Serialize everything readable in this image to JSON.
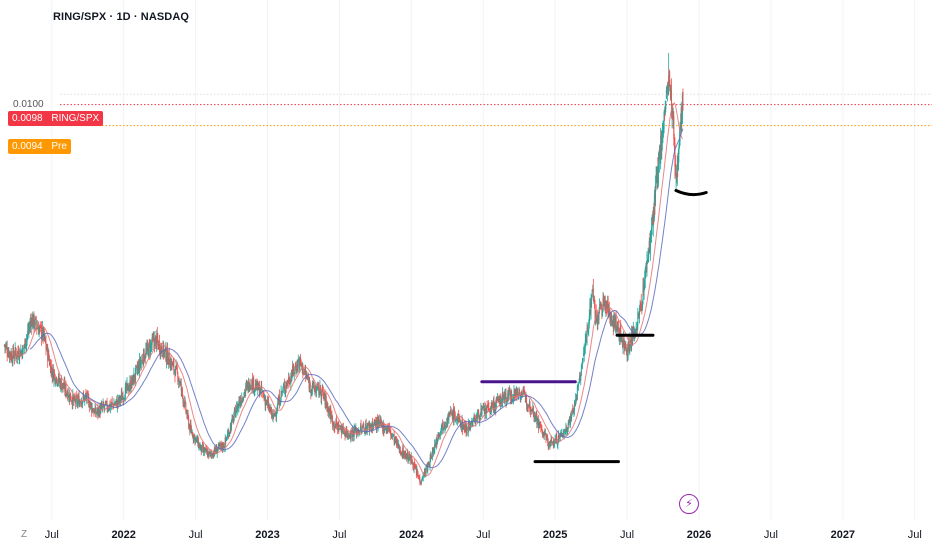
{
  "header": {
    "symbol_title": "RING/SPX · 1D · NASDAQ"
  },
  "price_scale": {
    "top_label": "0.0100"
  },
  "badges": {
    "ring": {
      "value": "0.0098",
      "label": "RING/SPX",
      "color": "#f23645"
    },
    "pre": {
      "value": "0.0094",
      "label": "Pre",
      "color": "#ff9800"
    }
  },
  "footer": {
    "tz_label": "Z"
  },
  "icons": {
    "event_marker": "lightning-bolt-icon"
  },
  "chart_data": {
    "type": "candlestick",
    "title": "RING/SPX · 1D · NASDAQ",
    "x_ticks": [
      {
        "t": 2021.5,
        "label": "Jul",
        "bold": false
      },
      {
        "t": 2022.0,
        "label": "2022",
        "bold": true
      },
      {
        "t": 2022.5,
        "label": "Jul",
        "bold": false
      },
      {
        "t": 2023.0,
        "label": "2023",
        "bold": true
      },
      {
        "t": 2023.5,
        "label": "Jul",
        "bold": false
      },
      {
        "t": 2024.0,
        "label": "2024",
        "bold": true
      },
      {
        "t": 2024.5,
        "label": "Jul",
        "bold": false
      },
      {
        "t": 2025.0,
        "label": "2025",
        "bold": true
      },
      {
        "t": 2025.5,
        "label": "Jul",
        "bold": false
      },
      {
        "t": 2026.0,
        "label": "2026",
        "bold": true
      },
      {
        "t": 2026.5,
        "label": "Jul",
        "bold": false
      },
      {
        "t": 2027.0,
        "label": "2027",
        "bold": true
      },
      {
        "t": 2027.5,
        "label": "Jul",
        "bold": false
      }
    ],
    "xlim": [
      2021.14,
      2027.62
    ],
    "ylim": [
      0.00195,
      0.01142
    ],
    "price_path": [
      [
        2021.17,
        0.0052
      ],
      [
        2021.22,
        0.005
      ],
      [
        2021.3,
        0.0051
      ],
      [
        2021.36,
        0.0057
      ],
      [
        2021.44,
        0.0054
      ],
      [
        2021.5,
        0.0047
      ],
      [
        2021.58,
        0.0044
      ],
      [
        2021.66,
        0.0041
      ],
      [
        2021.74,
        0.0042
      ],
      [
        2021.8,
        0.0039
      ],
      [
        2021.86,
        0.004
      ],
      [
        2021.96,
        0.0041
      ],
      [
        2022.06,
        0.0045
      ],
      [
        2022.14,
        0.005
      ],
      [
        2022.22,
        0.0053
      ],
      [
        2022.3,
        0.005
      ],
      [
        2022.38,
        0.0046
      ],
      [
        2022.46,
        0.0036
      ],
      [
        2022.54,
        0.0032
      ],
      [
        2022.6,
        0.0031
      ],
      [
        2022.7,
        0.0033
      ],
      [
        2022.8,
        0.0041
      ],
      [
        2022.88,
        0.0045
      ],
      [
        2022.96,
        0.0043
      ],
      [
        2023.04,
        0.0038
      ],
      [
        2023.1,
        0.0043
      ],
      [
        2023.16,
        0.0046
      ],
      [
        2023.22,
        0.0049
      ],
      [
        2023.3,
        0.0044
      ],
      [
        2023.38,
        0.0043
      ],
      [
        2023.46,
        0.0037
      ],
      [
        2023.56,
        0.0035
      ],
      [
        2023.66,
        0.0036
      ],
      [
        2023.76,
        0.0037
      ],
      [
        2023.84,
        0.0036
      ],
      [
        2023.92,
        0.0032
      ],
      [
        2024.0,
        0.003
      ],
      [
        2024.06,
        0.0026
      ],
      [
        2024.12,
        0.0029
      ],
      [
        2024.2,
        0.0036
      ],
      [
        2024.28,
        0.0039
      ],
      [
        2024.38,
        0.0036
      ],
      [
        2024.48,
        0.0039
      ],
      [
        2024.56,
        0.004
      ],
      [
        2024.64,
        0.0042
      ],
      [
        2024.76,
        0.0043
      ],
      [
        2024.84,
        0.004
      ],
      [
        2024.9,
        0.0036
      ],
      [
        2024.96,
        0.0033
      ],
      [
        2025.02,
        0.0034
      ],
      [
        2025.08,
        0.0036
      ],
      [
        2025.14,
        0.0041
      ],
      [
        2025.18,
        0.0047
      ],
      [
        2025.22,
        0.0054
      ],
      [
        2025.26,
        0.0063
      ],
      [
        2025.28,
        0.0057
      ],
      [
        2025.34,
        0.006
      ],
      [
        2025.42,
        0.0056
      ],
      [
        2025.5,
        0.0051
      ],
      [
        2025.56,
        0.0055
      ],
      [
        2025.6,
        0.006
      ],
      [
        2025.64,
        0.0068
      ],
      [
        2025.68,
        0.0076
      ],
      [
        2025.72,
        0.0087
      ],
      [
        2025.76,
        0.0096
      ],
      [
        2025.79,
        0.0103
      ],
      [
        2025.82,
        0.0094
      ],
      [
        2025.84,
        0.0082
      ],
      [
        2025.87,
        0.0096
      ],
      [
        2025.89,
        0.0098
      ]
    ],
    "moving_averages": [
      {
        "name": "",
        "color": "#e57373",
        "window": 4
      },
      {
        "name": "",
        "color": "#5c6bc0",
        "window": 9
      }
    ],
    "annotations": [
      {
        "type": "hline",
        "color": "#4a148c",
        "x0": 2024.49,
        "x1": 2025.14,
        "y": 0.0045
      },
      {
        "type": "hline",
        "color": "#000000",
        "x0": 2024.86,
        "x1": 2025.44,
        "y": 0.00297
      },
      {
        "type": "hline",
        "color": "#000000",
        "x0": 2025.43,
        "x1": 2025.68,
        "y": 0.00539
      },
      {
        "type": "curve",
        "color": "#000000",
        "x0": 2025.84,
        "x1": 2026.05,
        "y": 0.00812
      }
    ],
    "price_lines": [
      {
        "y": 0.0098,
        "color": "#f23645"
      },
      {
        "y": 0.0094,
        "color": "#ff9800"
      },
      {
        "y": 0.01,
        "color": "#dddddd"
      }
    ],
    "candle_colors": {
      "up": "#26a69a",
      "down": "#ef5350"
    },
    "peak": {
      "t": 2025.79,
      "high": 0.01079
    }
  }
}
